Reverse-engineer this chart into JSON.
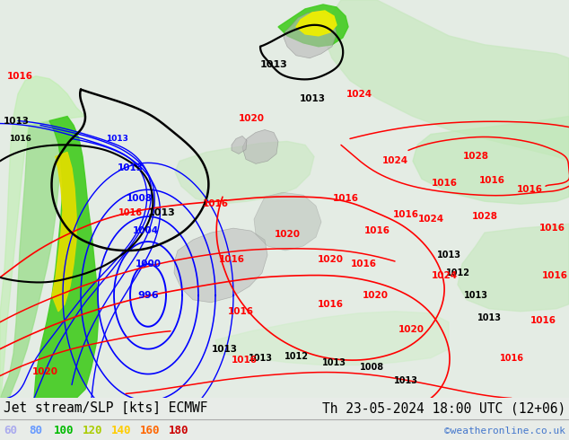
{
  "title_left": "Jet stream/SLP [kts] ECMWF",
  "title_right": "Th 23-05-2024 18:00 UTC (12+06)",
  "watermark": "©weatheronline.co.uk",
  "legend_values": [
    60,
    80,
    100,
    120,
    140,
    160,
    180
  ],
  "legend_colors": [
    "#aaaaee",
    "#6699ff",
    "#00bb00",
    "#aacc00",
    "#ffcc00",
    "#ff6600",
    "#cc0000"
  ],
  "bg_color": "#e8ece8",
  "bottom_bar_color": "#d8d8d8",
  "map_bg_light": "#e8eee8",
  "map_bg_sea": "#dce8dc",
  "watermark_color": "#4477cc",
  "font_size_title": 10.5,
  "font_size_legend": 9,
  "font_size_watermark": 8,
  "figsize": [
    6.34,
    4.9
  ],
  "dpi": 100,
  "jet_colors": {
    "60": "#c8e8c8",
    "80": "#88cc88",
    "100": "#44bb44",
    "120": "#aadd00",
    "140": "#ffdd00",
    "160": "#ff8800",
    "180": "#cc2200"
  }
}
